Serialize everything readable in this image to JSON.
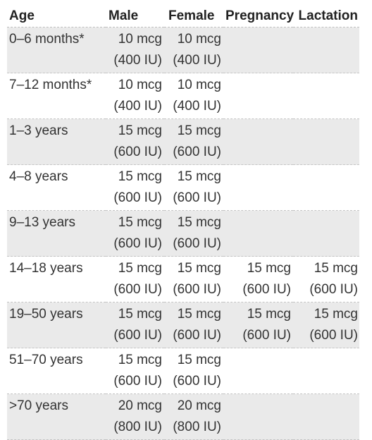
{
  "table": {
    "headers": [
      "Age",
      "Male",
      "Female",
      "Pregnancy",
      "Lactation"
    ],
    "rows": [
      {
        "age": "0–6 months*",
        "male": [
          "10 mcg",
          "(400 IU)"
        ],
        "female": [
          "10 mcg",
          "(400 IU)"
        ],
        "pregnancy": [
          "",
          ""
        ],
        "lactation": [
          "",
          ""
        ]
      },
      {
        "age": "7–12 months*",
        "male": [
          "10 mcg",
          "(400 IU)"
        ],
        "female": [
          "10 mcg",
          "(400 IU)"
        ],
        "pregnancy": [
          "",
          ""
        ],
        "lactation": [
          "",
          ""
        ]
      },
      {
        "age": "1–3 years",
        "male": [
          "15 mcg",
          "(600 IU)"
        ],
        "female": [
          "15 mcg",
          "(600 IU)"
        ],
        "pregnancy": [
          "",
          ""
        ],
        "lactation": [
          "",
          ""
        ]
      },
      {
        "age": "4–8 years",
        "male": [
          "15 mcg",
          "(600 IU)"
        ],
        "female": [
          "15 mcg",
          "(600 IU)"
        ],
        "pregnancy": [
          "",
          ""
        ],
        "lactation": [
          "",
          ""
        ]
      },
      {
        "age": "9–13 years",
        "male": [
          "15 mcg",
          "(600 IU)"
        ],
        "female": [
          "15 mcg",
          "(600 IU)"
        ],
        "pregnancy": [
          "",
          ""
        ],
        "lactation": [
          "",
          ""
        ]
      },
      {
        "age": "14–18 years",
        "male": [
          "15 mcg",
          "(600 IU)"
        ],
        "female": [
          "15 mcg",
          "(600 IU)"
        ],
        "pregnancy": [
          "15 mcg",
          "(600 IU)"
        ],
        "lactation": [
          "15 mcg",
          "(600 IU)"
        ]
      },
      {
        "age": "19–50 years",
        "male": [
          "15 mcg",
          "(600 IU)"
        ],
        "female": [
          "15 mcg",
          "(600 IU)"
        ],
        "pregnancy": [
          "15 mcg",
          "(600 IU)"
        ],
        "lactation": [
          "15 mcg",
          "(600 IU)"
        ]
      },
      {
        "age": "51–70 years",
        "male": [
          "15 mcg",
          "(600 IU)"
        ],
        "female": [
          "15 mcg",
          "(600 IU)"
        ],
        "pregnancy": [
          "",
          ""
        ],
        "lactation": [
          "",
          ""
        ]
      },
      {
        "age": ">70 years",
        "male": [
          "20 mcg",
          "(800 IU)"
        ],
        "female": [
          "20 mcg",
          "(800 IU)"
        ],
        "pregnancy": [
          "",
          ""
        ],
        "lactation": [
          "",
          ""
        ]
      }
    ]
  },
  "colors": {
    "row_shade": "#eaeaea",
    "text": "#333333",
    "header_text": "#222222",
    "divider": "#c4c4c4"
  }
}
